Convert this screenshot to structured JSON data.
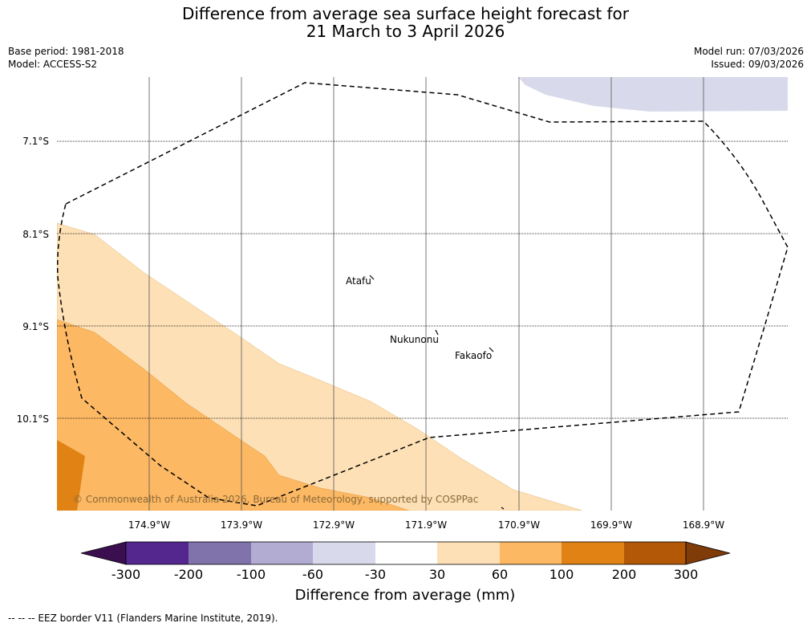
{
  "title": {
    "line1": "Difference from average sea surface height forecast for",
    "line2": "21 March to 3 April 2026"
  },
  "info_left": {
    "base_period": "Base period: 1981-2018",
    "model": "Model: ACCESS-S2"
  },
  "info_right": {
    "model_run": "Model run: 07/03/2026",
    "issued": "Issued: 09/03/2026"
  },
  "map": {
    "lat_labels": [
      "7.1°S",
      "8.1°S",
      "9.1°S",
      "10.1°S"
    ],
    "lon_labels": [
      "174.9°W",
      "173.9°W",
      "172.9°W",
      "171.9°W",
      "170.9°W",
      "169.9°W",
      "168.9°W"
    ],
    "places": [
      {
        "name": "Atafu"
      },
      {
        "name": "Nukunonu"
      },
      {
        "name": "Fakaofo"
      }
    ],
    "copyright": "© Commonwealth of Australia 2026, Bureau of Meteorology, supported by COSPPac"
  },
  "colorbar": {
    "ticks": [
      "-300",
      "-200",
      "-100",
      "-60",
      "-30",
      "30",
      "60",
      "100",
      "200",
      "300"
    ],
    "colors": [
      "#3b0f4f",
      "#54278f",
      "#8073ac",
      "#b2abd2",
      "#d8daeb",
      "#ffffff",
      "#fee0b6",
      "#fdb863",
      "#e08214",
      "#b35806",
      "#7f3b08"
    ],
    "label": "Difference from average (mm)"
  },
  "footer": {
    "legend": "--  --  -- EEZ border V11 (Flanders Marine Institute, 2019)."
  }
}
